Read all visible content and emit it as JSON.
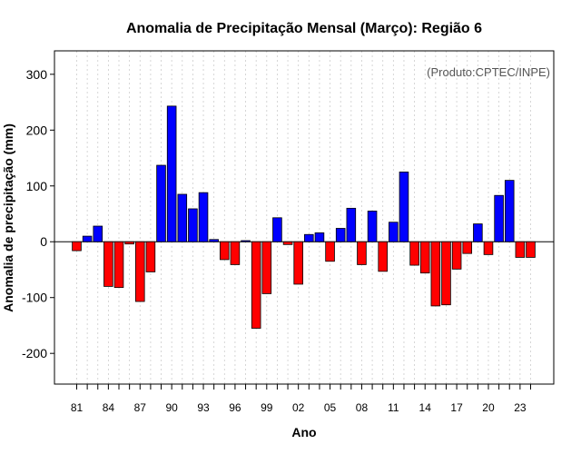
{
  "chart_data": {
    "type": "bar",
    "title": "Anomalia de Precipitação Mensal (Março): Região 6",
    "xlabel": "Ano",
    "ylabel": "Anomalia de precipitação (mm)",
    "credit": "(Produto:CPTEC/INPE)",
    "ylim": [
      -255,
      342
    ],
    "yticks": [
      300,
      200,
      100,
      0,
      -100,
      -200
    ],
    "ytick_labels": [
      "300",
      "200",
      "100",
      "0",
      "-100",
      "-200"
    ],
    "x_tick_labels": [
      "81",
      "84",
      "87",
      "90",
      "93",
      "96",
      "99",
      "02",
      "05",
      "08",
      "11",
      "14",
      "17",
      "20",
      "23"
    ],
    "grid": true,
    "positive_color": "#0000ff",
    "negative_color": "#ff0000",
    "categories": [
      "1981",
      "1982",
      "1983",
      "1984",
      "1985",
      "1986",
      "1987",
      "1988",
      "1989",
      "1990",
      "1991",
      "1992",
      "1993",
      "1994",
      "1995",
      "1996",
      "1997",
      "1998",
      "1999",
      "2000",
      "2001",
      "2002",
      "2003",
      "2004",
      "2005",
      "2006",
      "2007",
      "2008",
      "2009",
      "2010",
      "2011",
      "2012",
      "2013",
      "2014",
      "2015",
      "2016",
      "2017",
      "2018",
      "2019",
      "2020",
      "2021",
      "2022",
      "2023",
      "2024"
    ],
    "values": [
      -16,
      10,
      28,
      -80,
      -82,
      -4,
      -107,
      -54,
      137,
      243,
      85,
      59,
      88,
      4,
      -32,
      -41,
      2,
      -155,
      -93,
      43,
      -5,
      -76,
      13,
      16,
      -35,
      24,
      60,
      -41,
      55,
      -53,
      35,
      125,
      -42,
      -56,
      -115,
      -113,
      -49,
      -21,
      32,
      -23,
      83,
      110,
      -28,
      -28
    ]
  }
}
